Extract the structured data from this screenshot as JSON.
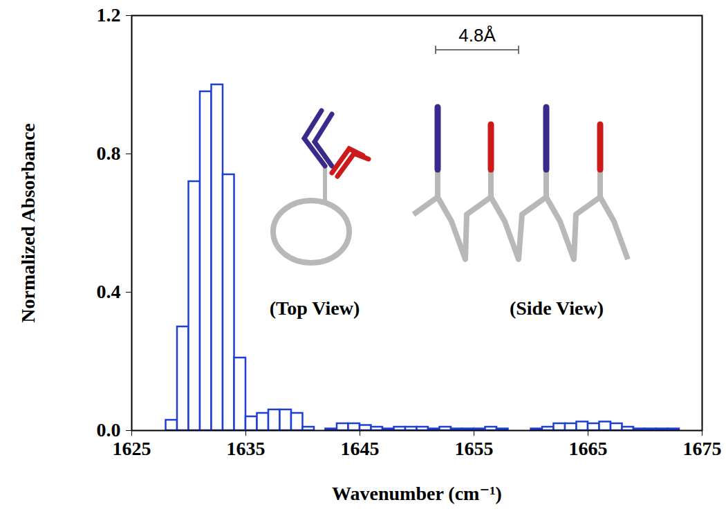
{
  "chart_data": {
    "type": "histogram",
    "xlabel": "Wavenumber (cm⁻¹)",
    "ylabel": "Normalized Absorbance",
    "bins": [
      1628,
      1629,
      1630,
      1631,
      1632,
      1633,
      1634,
      1635,
      1636,
      1637,
      1638,
      1639,
      1640,
      1641,
      1642,
      1643,
      1644,
      1645,
      1646,
      1647,
      1648,
      1649,
      1650,
      1651,
      1652,
      1653,
      1654,
      1655,
      1656,
      1657,
      1658,
      1659,
      1660,
      1661,
      1662,
      1663,
      1664,
      1665,
      1666,
      1667,
      1668,
      1669,
      1670,
      1671,
      1672,
      1673,
      1674,
      1675
    ],
    "counts": [
      0.03,
      0.3,
      0.72,
      0.98,
      1.0,
      0.74,
      0.21,
      0.04,
      0.05,
      0.06,
      0.06,
      0.05,
      0.01,
      0.0,
      0.005,
      0.02,
      0.02,
      0.015,
      0.01,
      0.005,
      0.01,
      0.01,
      0.01,
      0.005,
      0.01,
      0.005,
      0.005,
      0.005,
      0.01,
      0.005,
      0,
      0,
      0.005,
      0.01,
      0.02,
      0.02,
      0.025,
      0.02,
      0.025,
      0.02,
      0.01,
      0.005,
      0.005,
      0.005,
      0.005,
      0,
      0
    ],
    "color": "#1f3fd1",
    "xlim": [
      1625,
      1675
    ],
    "xticks": [
      1625,
      1635,
      1645,
      1655,
      1665,
      1675
    ],
    "ylim": [
      0,
      1.2
    ],
    "yticks": [
      {
        "value": 0,
        "label": "0.0"
      },
      {
        "value": 0.4,
        "label": "0.4"
      },
      {
        "value": 0.8,
        "label": "0.8"
      },
      {
        "value": 1.2,
        "label": "1.2"
      }
    ],
    "grid": false,
    "annotations": [
      "4.8Å",
      "(Top View)",
      "(Side View)"
    ]
  }
}
